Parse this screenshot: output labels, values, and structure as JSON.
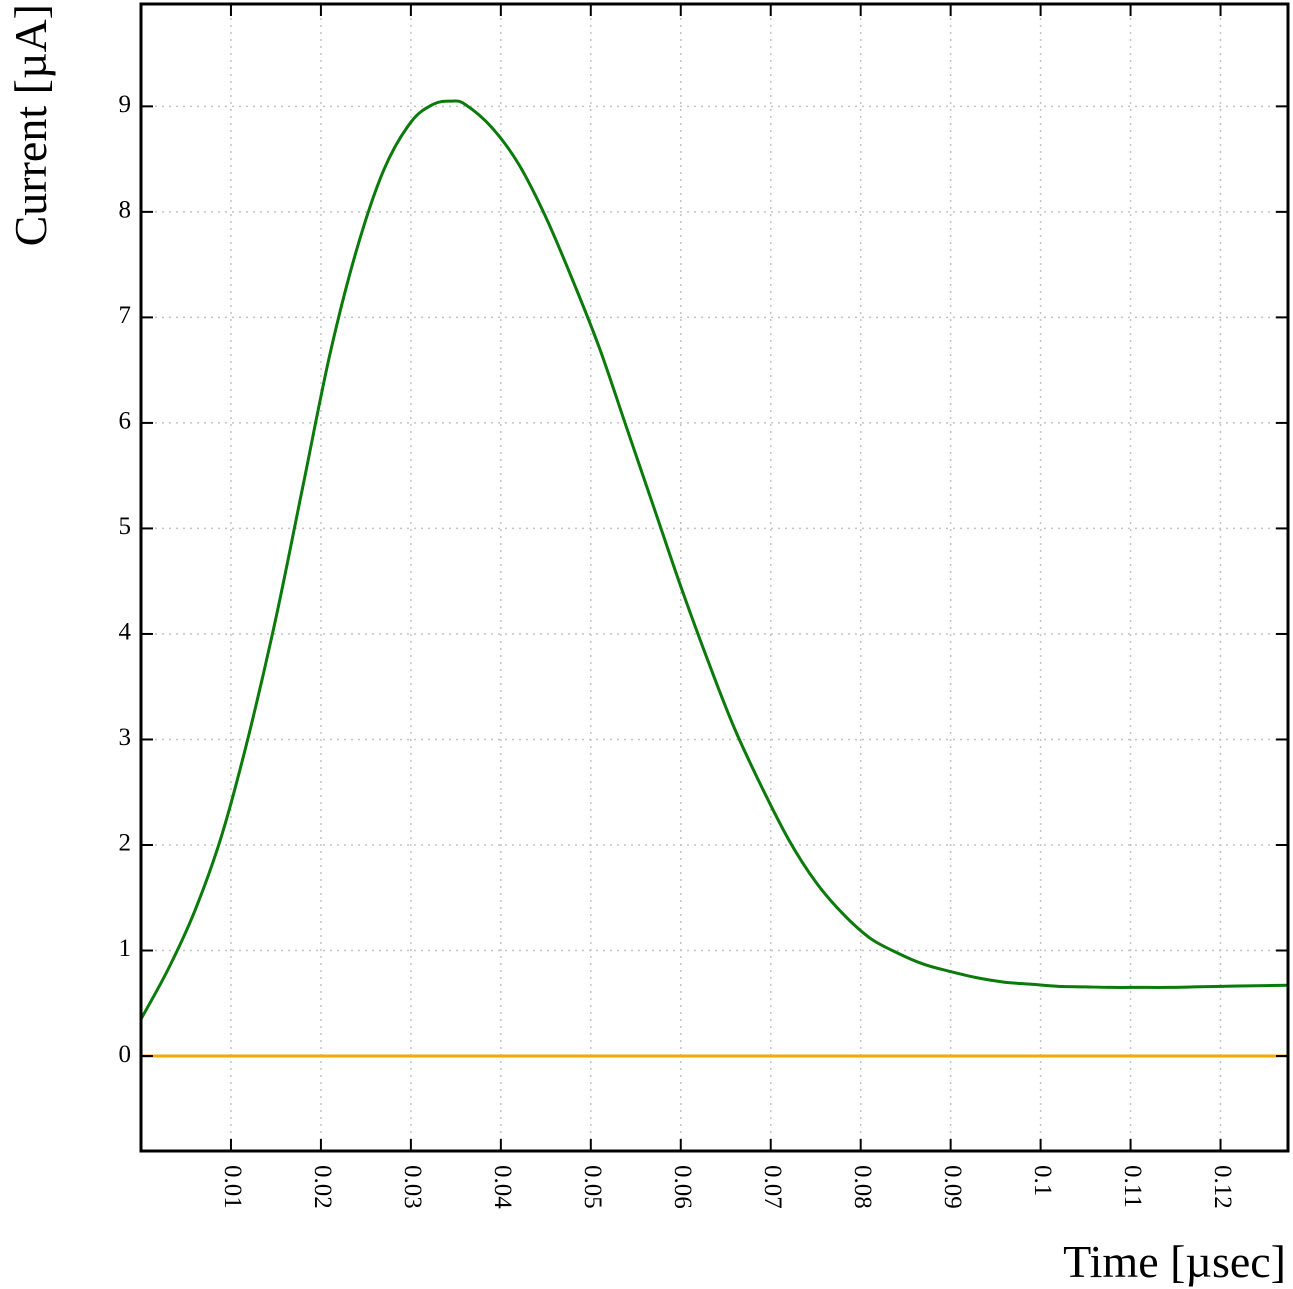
{
  "chart_data": {
    "type": "line",
    "title": "",
    "xlabel": "Time [µsec]",
    "ylabel": "Current [µA]",
    "xlim": [
      0,
      0.1275
    ],
    "ylim": [
      -0.9,
      9.97
    ],
    "x_ticks": [
      "0.01",
      "0.02",
      "0.03",
      "0.04",
      "0.05",
      "0.06",
      "0.07",
      "0.08",
      "0.09",
      "0.1",
      "0.11",
      "0.12"
    ],
    "y_ticks": [
      "0",
      "1",
      "2",
      "3",
      "4",
      "5",
      "6",
      "7",
      "8",
      "9"
    ],
    "grid": true,
    "series": [
      {
        "color": "#0a7a0a",
        "x": [
          0,
          0.003,
          0.006,
          0.009,
          0.012,
          0.015,
          0.018,
          0.021,
          0.024,
          0.027,
          0.03,
          0.0325,
          0.0345,
          0.036,
          0.039,
          0.042,
          0.045,
          0.048,
          0.051,
          0.054,
          0.057,
          0.06,
          0.063,
          0.066,
          0.069,
          0.072,
          0.075,
          0.078,
          0.081,
          0.084,
          0.087,
          0.09,
          0.093,
          0.096,
          0.099,
          0.102,
          0.105,
          0.108,
          0.111,
          0.114,
          0.117,
          0.12,
          0.123,
          0.1275
        ],
        "y": [
          0.35,
          0.82,
          1.38,
          2.1,
          3.05,
          4.15,
          5.4,
          6.65,
          7.65,
          8.4,
          8.85,
          9.02,
          9.05,
          9.02,
          8.8,
          8.45,
          7.95,
          7.35,
          6.7,
          5.95,
          5.2,
          4.45,
          3.75,
          3.1,
          2.55,
          2.05,
          1.65,
          1.35,
          1.12,
          0.98,
          0.87,
          0.8,
          0.74,
          0.7,
          0.68,
          0.66,
          0.655,
          0.65,
          0.65,
          0.65,
          0.655,
          0.66,
          0.665,
          0.67
        ]
      },
      {
        "color": "#f2a900",
        "x": [
          0,
          0.1275
        ],
        "y": [
          0,
          0
        ]
      }
    ]
  }
}
